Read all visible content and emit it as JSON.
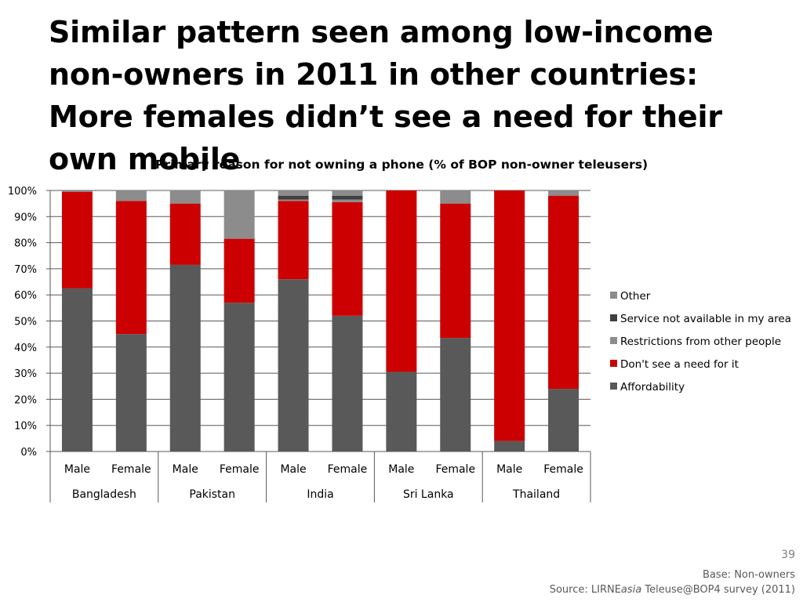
{
  "slide": {
    "title": "Similar pattern seen among low-income non-owners in 2011 in other countries: More females didn’t see a need for their own mobile",
    "page_number": "39",
    "base_note": "Base: Non-owners",
    "source_prefix": "Source: LIRNE",
    "source_italic": "asia",
    "source_suffix": " Teleuse@BOP4 survey (2011)"
  },
  "chart_data": {
    "type": "bar",
    "stacked": true,
    "title": "Primary reason for not owning a phone (% of BOP non-owner teleusers)",
    "xlabel": "",
    "ylabel": "",
    "ylim": [
      0,
      100
    ],
    "y_ticks": [
      "0%",
      "10%",
      "20%",
      "30%",
      "40%",
      "50%",
      "60%",
      "70%",
      "80%",
      "90%",
      "100%"
    ],
    "grid": true,
    "legend_position": "right",
    "groups": [
      "Bangladesh",
      "Pakistan",
      "India",
      "Sri Lanka",
      "Thailand"
    ],
    "categories": [
      "Male",
      "Female",
      "Male",
      "Female",
      "Male",
      "Female",
      "Male",
      "Female",
      "Male",
      "Female"
    ],
    "series": [
      {
        "name": "Affordability",
        "color": "#595959",
        "values": [
          62.5,
          45,
          71.5,
          57,
          66,
          52,
          30.5,
          43.5,
          4,
          24
        ]
      },
      {
        "name": "Don't see a need for it",
        "color": "#cc0000",
        "values": [
          37,
          51,
          23.5,
          24.5,
          30,
          43.5,
          69.5,
          51.5,
          96,
          74
        ]
      },
      {
        "name": "Restrictions from other people",
        "color": "#8c8c8c",
        "values": [
          0,
          0,
          0,
          18.5,
          0.5,
          1,
          0,
          0,
          0,
          0
        ]
      },
      {
        "name": "Service not available in my area",
        "color": "#404040",
        "values": [
          0,
          0,
          0,
          0,
          1.5,
          1.5,
          0,
          0,
          0,
          0
        ]
      },
      {
        "name": "Other",
        "color": "#8c8c8c",
        "values": [
          0.5,
          4,
          5,
          0,
          2,
          2,
          0,
          5,
          0,
          2
        ]
      }
    ]
  }
}
